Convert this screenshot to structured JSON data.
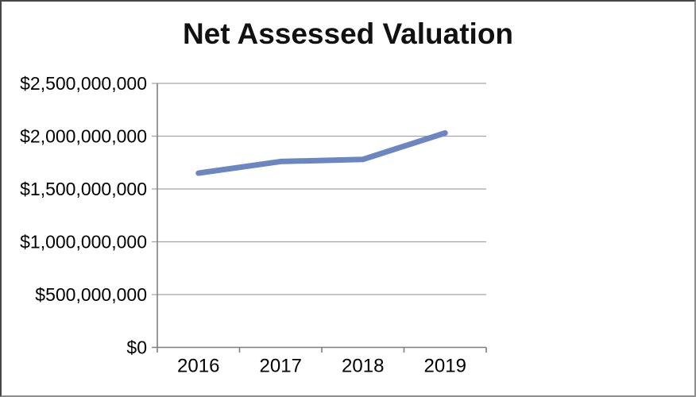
{
  "page": {
    "background": "#ffffff",
    "frame_color": "#474747"
  },
  "chart_data": {
    "type": "line",
    "title": "Net Assessed Valuation",
    "categories": [
      "2016",
      "2017",
      "2018",
      "2019"
    ],
    "series": [
      {
        "name": "net-assessed-valuation",
        "values": [
          1650000000,
          1760000000,
          1780000000,
          2030000000
        ],
        "color": "#6c86c2",
        "stroke_width": 7
      }
    ],
    "xlabel": "",
    "ylabel": "",
    "ylim": [
      0,
      2500000000
    ],
    "ytick_interval": 500000000,
    "ytick_labels": [
      "$0",
      "$500,000,000",
      "$1,000,000,000",
      "$1,500,000,000",
      "$2,000,000,000",
      "$2,500,000,000"
    ],
    "grid": true,
    "legend_position": "none",
    "gridline_color": "#a3a3a3",
    "axis_color": "#7f7f7f",
    "label_color": "#000000",
    "title_color": "#111111",
    "tick_font_size": 23,
    "x_tick_font_size": 24
  }
}
